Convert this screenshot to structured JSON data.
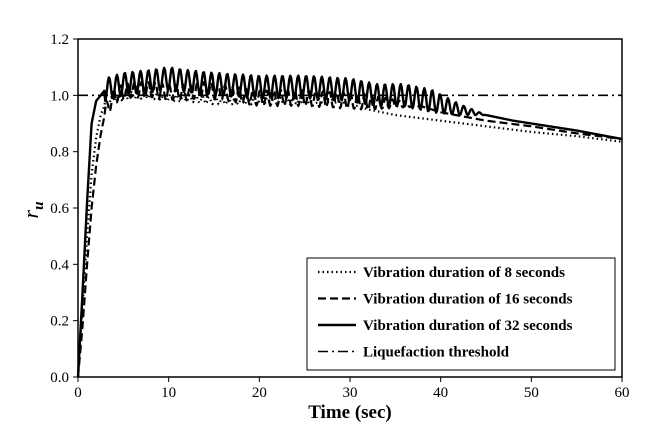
{
  "chart_data": {
    "type": "line",
    "xlabel": "Time (sec)",
    "ylabel_main": "r",
    "ylabel_sub": "u",
    "xlim": [
      0,
      60
    ],
    "ylim": [
      0,
      1.2
    ],
    "x_ticks": [
      "0",
      "10",
      "20",
      "30",
      "40",
      "50",
      "60"
    ],
    "y_ticks": [
      "0.0",
      "0.2",
      "0.4",
      "0.6",
      "0.8",
      "1.0",
      "1.2"
    ],
    "grid": false,
    "legend_position": "bottom-right",
    "series": [
      {
        "name": "Vibration duration of 8 seconds",
        "style": "dotted",
        "color": "#000000",
        "points": [
          [
            0,
            0
          ],
          [
            0.5,
            0.25
          ],
          [
            1,
            0.5
          ],
          [
            1.5,
            0.72
          ],
          [
            2,
            0.85
          ],
          [
            2.5,
            0.93
          ],
          [
            3,
            0.97
          ],
          [
            4,
            0.99
          ],
          [
            6,
            1.0
          ],
          [
            8,
            1.0
          ],
          [
            10,
            0.99
          ],
          [
            12,
            0.99
          ],
          [
            15,
            0.98
          ],
          [
            20,
            0.98
          ],
          [
            25,
            0.98
          ],
          [
            28,
            0.98
          ],
          [
            30,
            0.97
          ],
          [
            32,
            0.95
          ],
          [
            35,
            0.93
          ],
          [
            40,
            0.91
          ],
          [
            45,
            0.89
          ],
          [
            50,
            0.87
          ],
          [
            55,
            0.855
          ],
          [
            60,
            0.835
          ]
        ]
      },
      {
        "name": "Vibration duration of 16 seconds",
        "style": "dashed",
        "color": "#000000",
        "points": [
          [
            0,
            0
          ],
          [
            0.5,
            0.18
          ],
          [
            1,
            0.4
          ],
          [
            1.5,
            0.6
          ],
          [
            2,
            0.75
          ],
          [
            2.5,
            0.86
          ],
          [
            3,
            0.94
          ],
          [
            4,
            1.0
          ],
          [
            6,
            1.02
          ],
          [
            8,
            1.02
          ],
          [
            10,
            1.01
          ],
          [
            12,
            1.01
          ],
          [
            14,
            1.02
          ],
          [
            16,
            1.01
          ],
          [
            18,
            1.0
          ],
          [
            20,
            0.99
          ],
          [
            25,
            0.99
          ],
          [
            30,
            0.98
          ],
          [
            35,
            0.97
          ],
          [
            38,
            0.96
          ],
          [
            40,
            0.94
          ],
          [
            45,
            0.91
          ],
          [
            50,
            0.89
          ],
          [
            55,
            0.865
          ],
          [
            60,
            0.845
          ]
        ]
      },
      {
        "name": "Vibration duration of 32 seconds",
        "style": "solid",
        "color": "#000000",
        "points": [
          [
            0,
            0
          ],
          [
            0.5,
            0.3
          ],
          [
            1,
            0.62
          ],
          [
            1.5,
            0.9
          ],
          [
            2,
            0.98
          ],
          [
            3,
            1.02
          ],
          [
            5,
            1.04
          ],
          [
            8,
            1.05
          ],
          [
            10,
            1.06
          ],
          [
            12,
            1.05
          ],
          [
            15,
            1.04
          ],
          [
            20,
            1.03
          ],
          [
            25,
            1.03
          ],
          [
            30,
            1.02
          ],
          [
            33,
            1.0
          ],
          [
            36,
            1.0
          ],
          [
            39,
            0.98
          ],
          [
            42,
            0.95
          ],
          [
            45,
            0.93
          ],
          [
            48,
            0.91
          ],
          [
            50,
            0.9
          ],
          [
            55,
            0.875
          ],
          [
            60,
            0.845
          ]
        ]
      },
      {
        "name": "Liquefaction threshold",
        "style": "dashdot",
        "color": "#000000",
        "points": [
          [
            0,
            1.0
          ],
          [
            60,
            1.0
          ]
        ]
      }
    ]
  }
}
